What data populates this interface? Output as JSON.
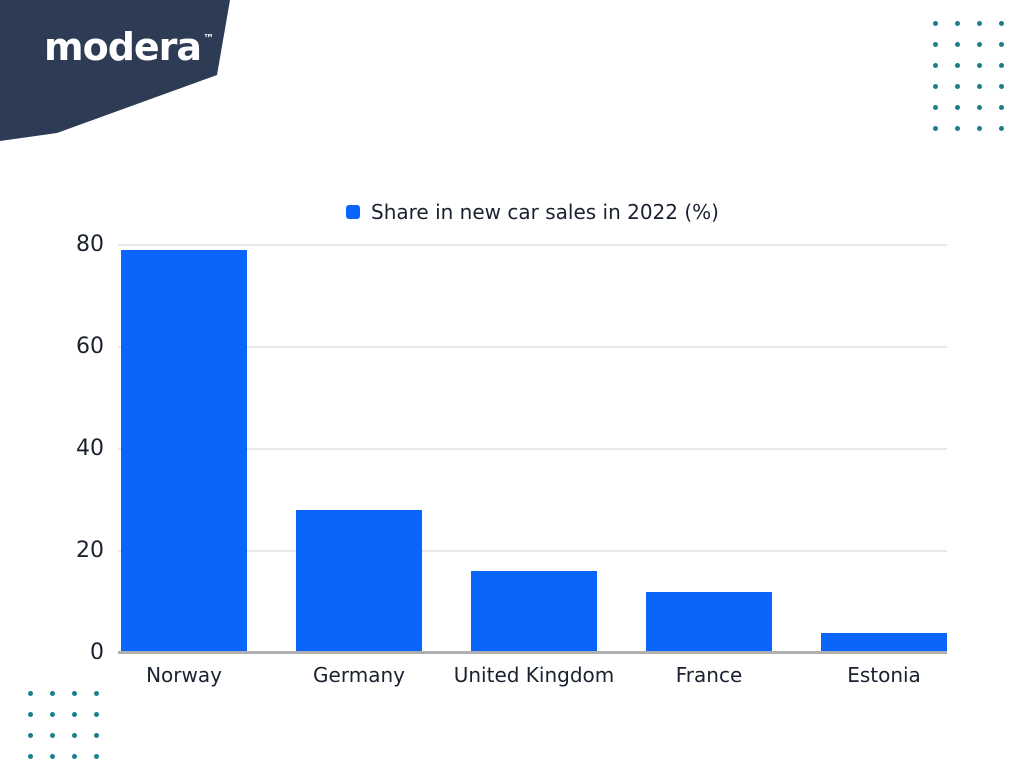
{
  "brand": {
    "logo_text": "modera",
    "trademark": "™",
    "banner_color": "#2E3B55",
    "logo_color": "#FFFFFF"
  },
  "decor": {
    "dot_color": "#1B7E88",
    "top_right_dots": {
      "rows": 6,
      "cols": 4
    },
    "bottom_left_dots": {
      "rows": 4,
      "cols": 4
    }
  },
  "chart_data": {
    "type": "bar",
    "title": "",
    "legend": {
      "label": "Share in new car sales in 2022 (%)",
      "position": "top-center",
      "marker": "square"
    },
    "categories": [
      "Norway",
      "Germany",
      "United Kingdom",
      "France",
      "Estonia"
    ],
    "values": [
      79,
      28,
      16,
      12,
      4
    ],
    "xlabel": "",
    "ylabel": "",
    "ylim": [
      0,
      80
    ],
    "yticks": [
      0,
      20,
      40,
      60,
      80
    ],
    "grid": true,
    "bar_color": "#0A66FB",
    "grid_color": "#E8E8E8",
    "axis_line_color": "#AFAFAF",
    "label_color": "#1A2230"
  }
}
